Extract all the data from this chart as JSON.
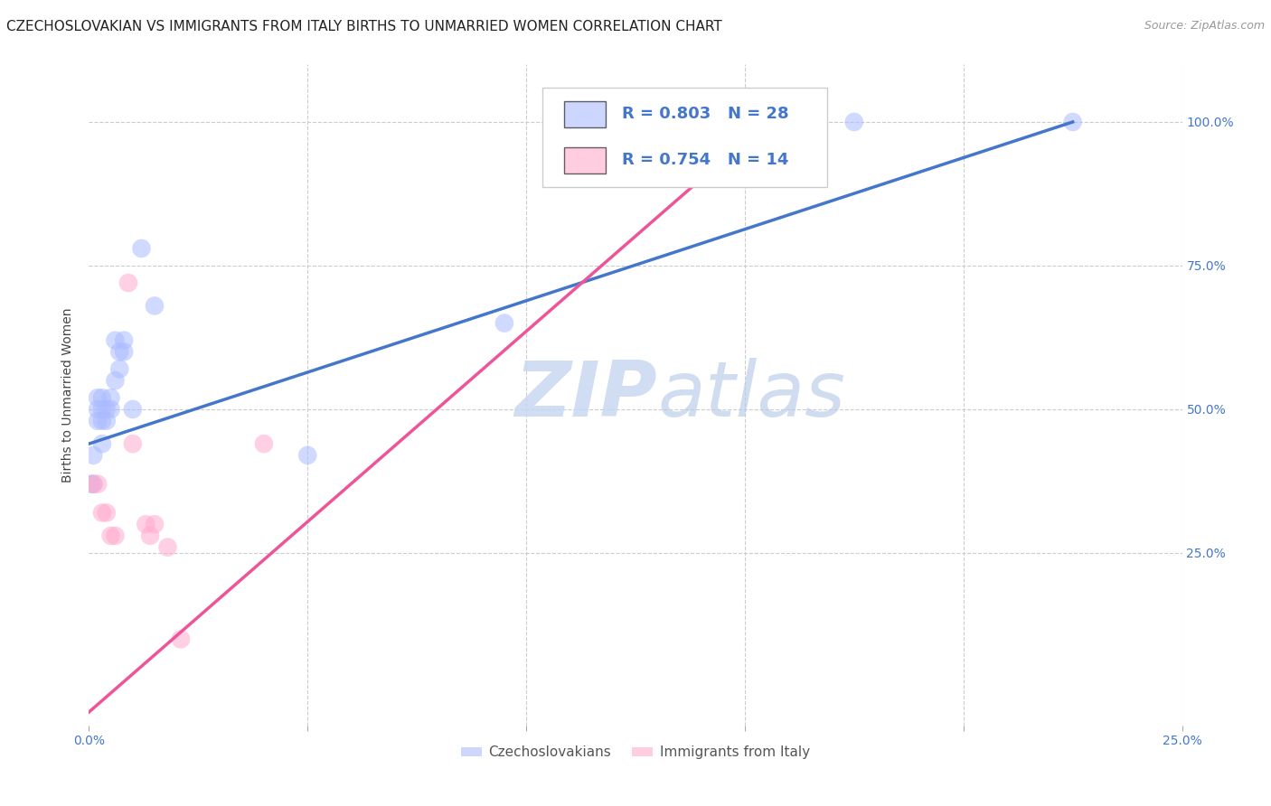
{
  "title": "CZECHOSLOVAKIAN VS IMMIGRANTS FROM ITALY BIRTHS TO UNMARRIED WOMEN CORRELATION CHART",
  "source": "Source: ZipAtlas.com",
  "ylabel": "Births to Unmarried Women",
  "xlim": [
    0.0,
    0.25
  ],
  "ylim": [
    -0.05,
    1.1
  ],
  "blue_scatter": [
    [
      0.0005,
      0.37
    ],
    [
      0.001,
      0.37
    ],
    [
      0.001,
      0.42
    ],
    [
      0.002,
      0.48
    ],
    [
      0.002,
      0.5
    ],
    [
      0.002,
      0.52
    ],
    [
      0.003,
      0.44
    ],
    [
      0.003,
      0.48
    ],
    [
      0.003,
      0.5
    ],
    [
      0.003,
      0.52
    ],
    [
      0.004,
      0.48
    ],
    [
      0.004,
      0.5
    ],
    [
      0.005,
      0.5
    ],
    [
      0.005,
      0.52
    ],
    [
      0.006,
      0.55
    ],
    [
      0.006,
      0.62
    ],
    [
      0.007,
      0.57
    ],
    [
      0.007,
      0.6
    ],
    [
      0.008,
      0.6
    ],
    [
      0.008,
      0.62
    ],
    [
      0.01,
      0.5
    ],
    [
      0.012,
      0.78
    ],
    [
      0.015,
      0.68
    ],
    [
      0.05,
      0.42
    ],
    [
      0.095,
      0.65
    ],
    [
      0.14,
      1.0
    ],
    [
      0.175,
      1.0
    ],
    [
      0.225,
      1.0
    ]
  ],
  "pink_scatter": [
    [
      0.001,
      0.37
    ],
    [
      0.002,
      0.37
    ],
    [
      0.003,
      0.32
    ],
    [
      0.004,
      0.32
    ],
    [
      0.005,
      0.28
    ],
    [
      0.006,
      0.28
    ],
    [
      0.009,
      0.72
    ],
    [
      0.01,
      0.44
    ],
    [
      0.013,
      0.3
    ],
    [
      0.014,
      0.28
    ],
    [
      0.015,
      0.3
    ],
    [
      0.018,
      0.26
    ],
    [
      0.021,
      0.1
    ],
    [
      0.04,
      0.44
    ]
  ],
  "blue_line_x": [
    0.0,
    0.225
  ],
  "blue_line_y": [
    0.44,
    1.0
  ],
  "pink_line_x": [
    -0.002,
    0.155
  ],
  "pink_line_y": [
    -0.04,
    1.0
  ],
  "blue_color": "#aabbff",
  "pink_color": "#ffaacc",
  "blue_line_color": "#4477cc",
  "pink_line_color": "#ee5599",
  "R_blue": 0.803,
  "N_blue": 28,
  "R_pink": 0.754,
  "N_pink": 14,
  "legend_blue_label": "Czechoslovakians",
  "legend_pink_label": "Immigrants from Italy",
  "watermark_zip": "ZIP",
  "watermark_atlas": "atlas",
  "background_color": "#ffffff",
  "grid_color": "#cccccc",
  "right_tick_color": "#4477cc",
  "bottom_tick_color": "#4477cc"
}
